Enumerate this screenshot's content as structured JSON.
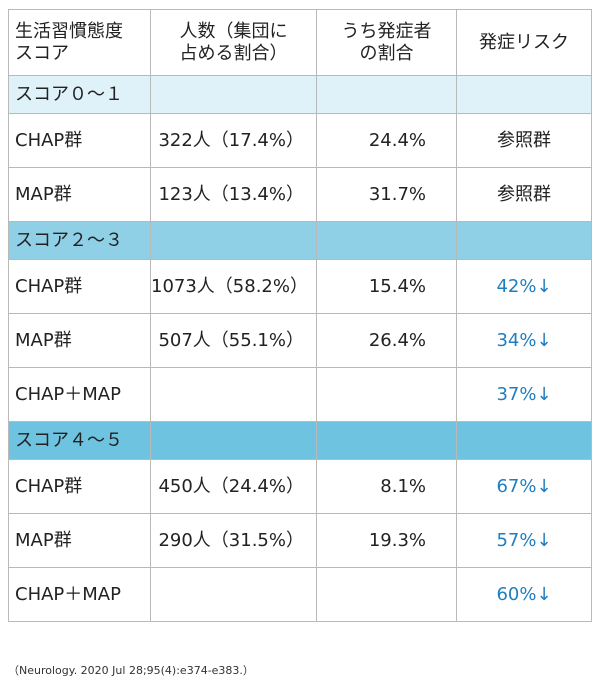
{
  "header": {
    "col1_line1": "生活習慣態度",
    "col1_line2": "スコア",
    "col2_line1": "人数（集団に",
    "col2_line2": "占める割合）",
    "col3_line1": "うち発症者",
    "col3_line2": "の割合",
    "col4": "発症リスク"
  },
  "sections": [
    {
      "label": "スコア０～１",
      "color": "#dff2f9",
      "rows": [
        {
          "group": "CHAP群",
          "count": "322人（17.4%）",
          "rate": "24.4%",
          "risk": "参照群"
        },
        {
          "group": "MAP群",
          "count": "123人（13.4%）",
          "rate": "31.7%",
          "risk": "参照群"
        }
      ]
    },
    {
      "label": "スコア２～３",
      "color": "#8fd0e6",
      "rows": [
        {
          "group": "CHAP群",
          "count": "1073人（58.2%）",
          "rate": "15.4%",
          "risk": "42%↓"
        },
        {
          "group": "MAP群",
          "count": "507人（55.1%）",
          "rate": "26.4%",
          "risk": "34%↓"
        },
        {
          "group": "CHAP＋MAP",
          "count": "",
          "rate": "",
          "risk": "37%↓"
        }
      ]
    },
    {
      "label": "スコア４～５",
      "color": "#6ec4e0",
      "rows": [
        {
          "group": "CHAP群",
          "count": "450人（24.4%）",
          "rate": "8.1%",
          "risk": "67%↓"
        },
        {
          "group": "MAP群",
          "count": "290人（31.5%）",
          "rate": "19.3%",
          "risk": "57%↓"
        },
        {
          "group": "CHAP＋MAP",
          "count": "",
          "rate": "",
          "risk": "60%↓"
        }
      ]
    }
  ],
  "footnote": "（Neurology. 2020 Jul 28;95(4):e374-e383.）",
  "colors": {
    "risk_accent": "#1f7ec0",
    "border": "#b9b9b9"
  }
}
